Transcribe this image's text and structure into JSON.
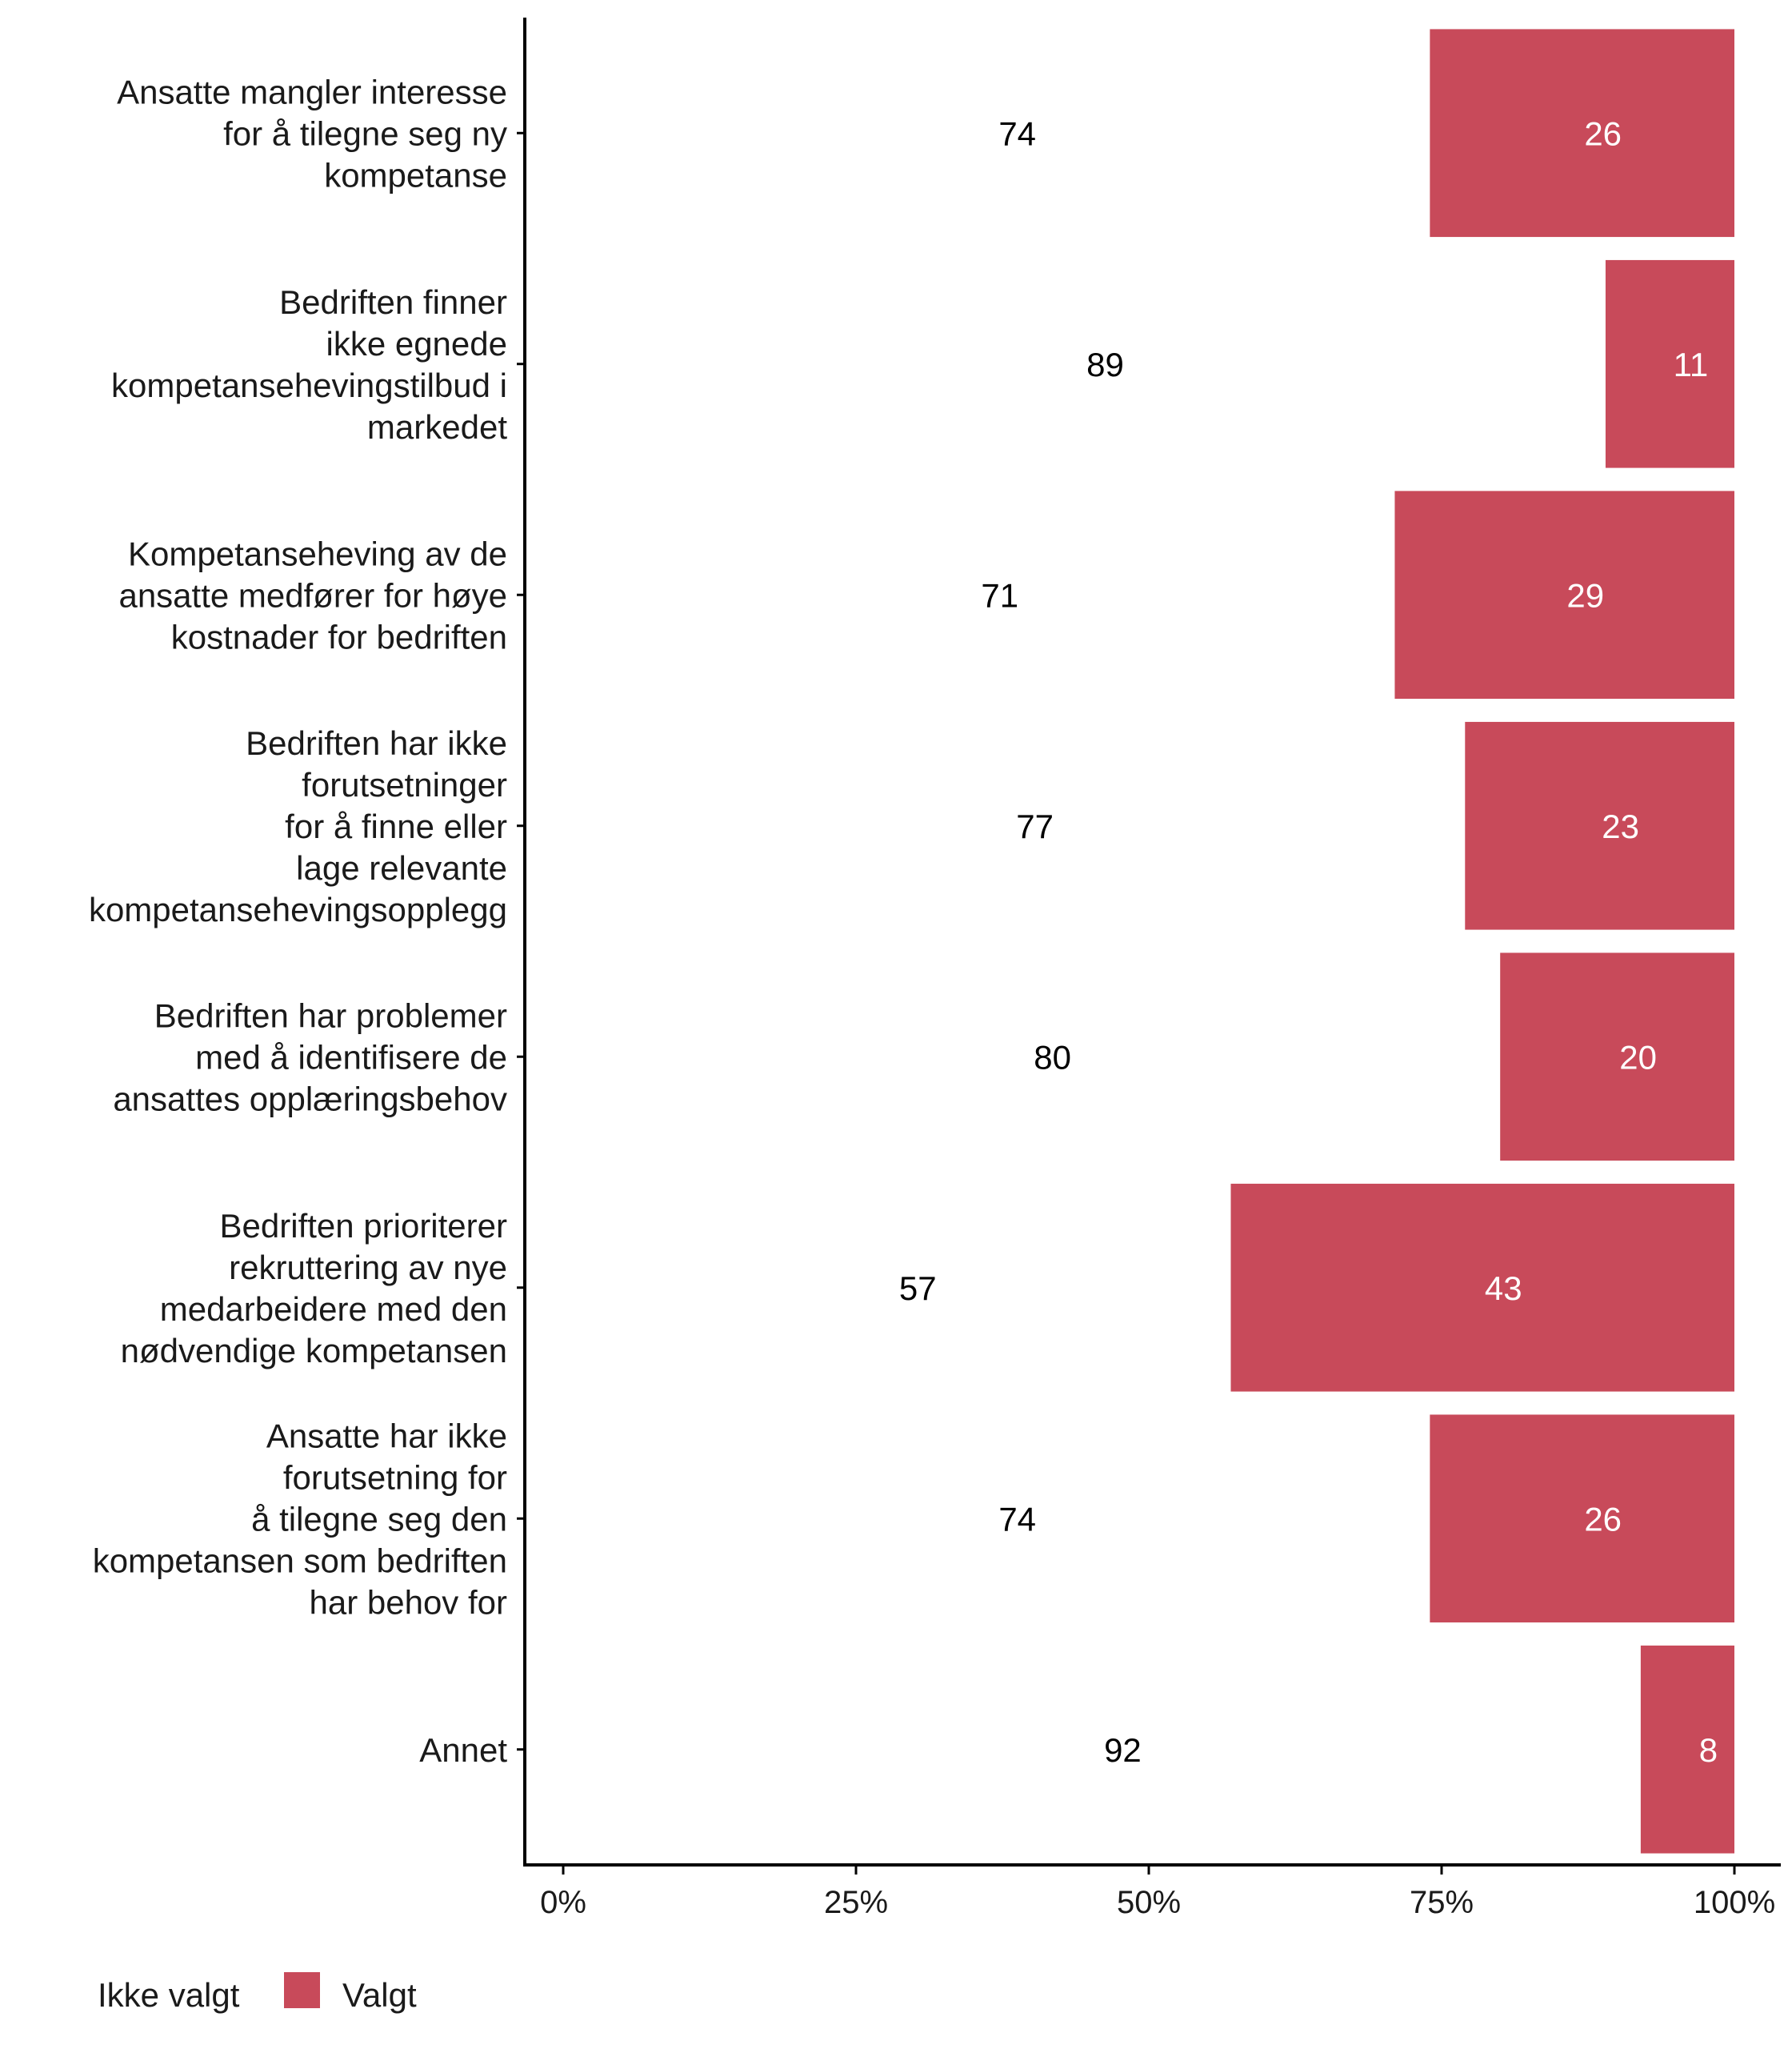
{
  "chart_data": {
    "type": "bar",
    "orientation": "horizontal",
    "stacked": true,
    "percent": true,
    "categories": [
      [
        "Ansatte mangler interesse",
        "for å tilegne seg ny",
        "kompetanse"
      ],
      [
        "Bedriften finner",
        "ikke egnede",
        "kompetansehevingstilbud i",
        "markedet"
      ],
      [
        "Kompetanseheving av de",
        "ansatte medfører for høye",
        "kostnader for bedriften"
      ],
      [
        "Bedriften har ikke",
        "forutsetninger",
        "for å finne eller",
        "lage relevante",
        "kompetansehevingsopplegg"
      ],
      [
        "Bedriften har problemer",
        "med å identifisere de",
        "ansattes opplæringsbehov"
      ],
      [
        "Bedriften prioriterer",
        "rekruttering av nye",
        "medarbeidere med den",
        "nødvendige kompetansen"
      ],
      [
        "Ansatte har ikke",
        "forutsetning for",
        "å tilegne seg den",
        "kompetansen som bedriften",
        "har behov for"
      ],
      [
        "Annet"
      ]
    ],
    "series": [
      {
        "name": "Ikke valgt",
        "color": "#ffffff",
        "label_color": "#000000",
        "values": [
          74,
          89,
          71,
          77,
          80,
          57,
          74,
          92
        ]
      },
      {
        "name": "Valgt",
        "color": "#c84a5a",
        "label_color": "#ffffff",
        "values": [
          26,
          11,
          29,
          23,
          20,
          43,
          26,
          8
        ]
      }
    ],
    "xlim": [
      0,
      100
    ],
    "xticks": [
      "0%",
      "25%",
      "50%",
      "75%",
      "100%"
    ],
    "xlabel": "",
    "ylabel": "",
    "grid": false,
    "legend_position": "bottom-left"
  }
}
